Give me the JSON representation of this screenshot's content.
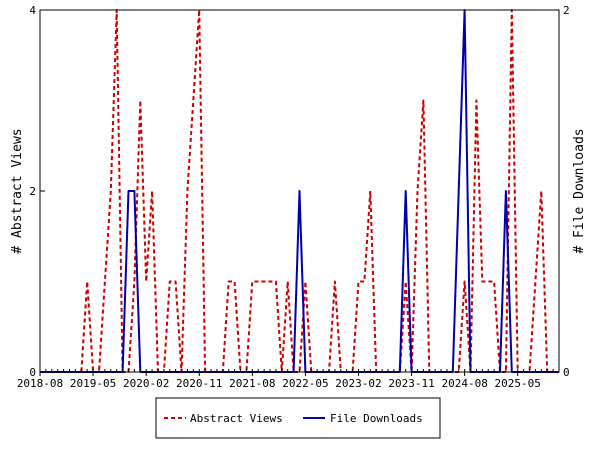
{
  "chart_data": {
    "type": "line",
    "x_tick_labels": [
      "2018-08",
      "2019-05",
      "2020-02",
      "2020-11",
      "2021-08",
      "2022-05",
      "2023-02",
      "2023-11",
      "2024-08",
      "2025-05"
    ],
    "x_start": "2018-08",
    "x_end": "2025-12",
    "ylabel_left": "# Abstract Views",
    "ylabel_right": "# File Downloads",
    "ylim_left": [
      0,
      4
    ],
    "ylim_right": [
      0,
      2
    ],
    "yticks_left": [
      0,
      2,
      4
    ],
    "yticks_right": [
      0,
      2
    ],
    "grid": false,
    "legend_position": "bottom",
    "series": [
      {
        "name": "Abstract Views",
        "axis": "left",
        "style": "dashed",
        "color": "#cc0000",
        "points": [
          [
            "2018-08",
            0
          ],
          [
            "2019-03",
            0
          ],
          [
            "2019-04",
            1
          ],
          [
            "2019-05",
            0
          ],
          [
            "2019-06",
            0
          ],
          [
            "2019-07",
            1
          ],
          [
            "2019-08",
            2
          ],
          [
            "2019-09",
            4
          ],
          [
            "2019-10",
            0
          ],
          [
            "2019-11",
            0
          ],
          [
            "2019-12",
            1
          ],
          [
            "2020-01",
            3
          ],
          [
            "2020-02",
            1
          ],
          [
            "2020-03",
            2
          ],
          [
            "2020-04",
            0
          ],
          [
            "2020-05",
            0
          ],
          [
            "2020-06",
            1
          ],
          [
            "2020-07",
            1
          ],
          [
            "2020-08",
            0
          ],
          [
            "2020-09",
            2
          ],
          [
            "2020-10",
            3
          ],
          [
            "2020-11",
            4
          ],
          [
            "2020-12",
            0
          ],
          [
            "2021-01",
            0
          ],
          [
            "2021-02",
            0
          ],
          [
            "2021-03",
            0
          ],
          [
            "2021-04",
            1
          ],
          [
            "2021-05",
            1
          ],
          [
            "2021-06",
            0
          ],
          [
            "2021-07",
            0
          ],
          [
            "2021-08",
            1
          ],
          [
            "2021-09",
            1
          ],
          [
            "2021-10",
            1
          ],
          [
            "2021-11",
            1
          ],
          [
            "2021-12",
            1
          ],
          [
            "2022-01",
            0
          ],
          [
            "2022-02",
            1
          ],
          [
            "2022-03",
            0
          ],
          [
            "2022-04",
            0
          ],
          [
            "2022-05",
            1
          ],
          [
            "2022-06",
            0
          ],
          [
            "2022-07",
            0
          ],
          [
            "2022-08",
            0
          ],
          [
            "2022-09",
            0
          ],
          [
            "2022-10",
            1
          ],
          [
            "2022-11",
            0
          ],
          [
            "2022-12",
            0
          ],
          [
            "2023-01",
            0
          ],
          [
            "2023-02",
            1
          ],
          [
            "2023-03",
            1
          ],
          [
            "2023-04",
            2
          ],
          [
            "2023-05",
            0
          ],
          [
            "2023-06",
            0
          ],
          [
            "2023-07",
            0
          ],
          [
            "2023-08",
            0
          ],
          [
            "2023-09",
            0
          ],
          [
            "2023-10",
            1
          ],
          [
            "2023-11",
            0
          ],
          [
            "2023-12",
            2
          ],
          [
            "2024-01",
            3
          ],
          [
            "2024-02",
            0
          ],
          [
            "2024-03",
            0
          ],
          [
            "2024-04",
            0
          ],
          [
            "2024-05",
            0
          ],
          [
            "2024-06",
            0
          ],
          [
            "2024-07",
            0
          ],
          [
            "2024-08",
            1
          ],
          [
            "2024-09",
            0
          ],
          [
            "2024-10",
            3
          ],
          [
            "2024-11",
            1
          ],
          [
            "2024-12",
            1
          ],
          [
            "2025-01",
            1
          ],
          [
            "2025-02",
            0
          ],
          [
            "2025-03",
            0
          ],
          [
            "2025-04",
            4
          ],
          [
            "2025-05",
            0
          ],
          [
            "2025-06",
            0
          ],
          [
            "2025-07",
            0
          ],
          [
            "2025-08",
            1
          ],
          [
            "2025-09",
            2
          ],
          [
            "2025-10",
            0
          ],
          [
            "2025-11",
            0
          ],
          [
            "2025-12",
            0
          ]
        ]
      },
      {
        "name": "File Downloads",
        "axis": "right",
        "style": "solid",
        "color": "#0000aa",
        "points": [
          [
            "2018-08",
            0
          ],
          [
            "2019-10",
            0
          ],
          [
            "2019-11",
            1
          ],
          [
            "2019-12",
            1
          ],
          [
            "2020-01",
            0
          ],
          [
            "2022-03",
            0
          ],
          [
            "2022-04",
            1
          ],
          [
            "2022-05",
            0
          ],
          [
            "2023-09",
            0
          ],
          [
            "2023-10",
            1
          ],
          [
            "2023-11",
            0
          ],
          [
            "2024-06",
            0
          ],
          [
            "2024-07",
            1
          ],
          [
            "2024-08",
            2
          ],
          [
            "2024-09",
            0
          ],
          [
            "2025-02",
            0
          ],
          [
            "2025-03",
            1
          ],
          [
            "2025-04",
            0
          ],
          [
            "2025-12",
            0
          ]
        ]
      }
    ]
  }
}
